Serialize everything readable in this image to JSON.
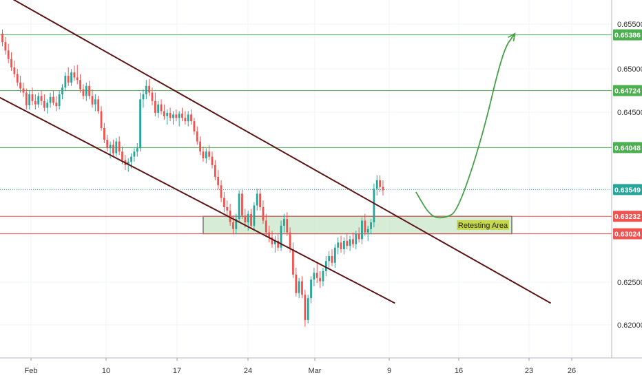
{
  "chart_data": {
    "type": "candlestick",
    "title": "",
    "xlabel": "",
    "ylabel": "",
    "ylim": [
      0.6155,
      0.658
    ],
    "y_ticks": [
      "0.65500",
      "0.65000",
      "0.64500",
      "0.62500",
      "0.62000"
    ],
    "x_ticks": [
      "Feb",
      "10",
      "17",
      "24",
      "Mar",
      "9",
      "16",
      "23",
      "26"
    ],
    "grid": true,
    "price_levels": [
      {
        "label": "0.65386",
        "value": 0.65386,
        "color": "#4caf50",
        "style": "solid"
      },
      {
        "label": "0.64724",
        "value": 0.64724,
        "color": "#4caf50",
        "style": "solid"
      },
      {
        "label": "0.64048",
        "value": 0.64048,
        "color": "#4caf50",
        "style": "solid"
      },
      {
        "label": "0.63549",
        "value": 0.63549,
        "color": "#26a69a",
        "style": "dotted"
      },
      {
        "label": "0.63232",
        "value": 0.63232,
        "color": "#ef5350",
        "style": "solid"
      },
      {
        "label": "0.63024",
        "value": 0.63024,
        "color": "#ef5350",
        "style": "solid"
      }
    ],
    "candles": [
      [
        0.654,
        0.6545,
        0.6525,
        0.653
      ],
      [
        0.653,
        0.6536,
        0.6515,
        0.652
      ],
      [
        0.652,
        0.6528,
        0.6505,
        0.651
      ],
      [
        0.651,
        0.6518,
        0.6496,
        0.65
      ],
      [
        0.65,
        0.6508,
        0.6488,
        0.6492
      ],
      [
        0.6492,
        0.6498,
        0.6478,
        0.6482
      ],
      [
        0.6482,
        0.649,
        0.647,
        0.6475
      ],
      [
        0.6475,
        0.6482,
        0.6465,
        0.647
      ],
      [
        0.647,
        0.6475,
        0.645,
        0.6455
      ],
      [
        0.6455,
        0.6472,
        0.645,
        0.6468
      ],
      [
        0.6468,
        0.6476,
        0.6455,
        0.646
      ],
      [
        0.646,
        0.6468,
        0.645,
        0.6456
      ],
      [
        0.6456,
        0.647,
        0.6452,
        0.6466
      ],
      [
        0.6466,
        0.6472,
        0.6455,
        0.646
      ],
      [
        0.646,
        0.6468,
        0.6448,
        0.6452
      ],
      [
        0.6452,
        0.6462,
        0.6445,
        0.6458
      ],
      [
        0.6458,
        0.647,
        0.6452,
        0.6465
      ],
      [
        0.6465,
        0.6472,
        0.6455,
        0.6458
      ],
      [
        0.6458,
        0.6466,
        0.6448,
        0.6454
      ],
      [
        0.6454,
        0.6472,
        0.645,
        0.6468
      ],
      [
        0.6468,
        0.648,
        0.6462,
        0.6476
      ],
      [
        0.6476,
        0.6494,
        0.6472,
        0.649
      ],
      [
        0.649,
        0.65,
        0.6478,
        0.6482
      ],
      [
        0.6482,
        0.6498,
        0.6478,
        0.6494
      ],
      [
        0.6494,
        0.6502,
        0.6484,
        0.6488
      ],
      [
        0.6488,
        0.6503,
        0.648,
        0.6485
      ],
      [
        0.6485,
        0.6492,
        0.647,
        0.6474
      ],
      [
        0.6474,
        0.648,
        0.6462,
        0.6466
      ],
      [
        0.6466,
        0.6482,
        0.646,
        0.6478
      ],
      [
        0.6478,
        0.6484,
        0.6462,
        0.6466
      ],
      [
        0.6466,
        0.6474,
        0.6452,
        0.6456
      ],
      [
        0.6456,
        0.6468,
        0.6448,
        0.6462
      ],
      [
        0.6462,
        0.6466,
        0.6445,
        0.6448
      ],
      [
        0.6448,
        0.6454,
        0.6425,
        0.6428
      ],
      [
        0.6428,
        0.6434,
        0.641,
        0.6414
      ],
      [
        0.6414,
        0.642,
        0.64,
        0.6404
      ],
      [
        0.6404,
        0.6412,
        0.6392,
        0.6408
      ],
      [
        0.6408,
        0.6414,
        0.6395,
        0.6398
      ],
      [
        0.6398,
        0.6416,
        0.6394,
        0.6412
      ],
      [
        0.6412,
        0.6418,
        0.6396,
        0.64
      ],
      [
        0.64,
        0.6406,
        0.6385,
        0.639
      ],
      [
        0.639,
        0.6396,
        0.6378,
        0.6384
      ],
      [
        0.6384,
        0.6392,
        0.6376,
        0.6388
      ],
      [
        0.6388,
        0.6398,
        0.638,
        0.6394
      ],
      [
        0.6394,
        0.6404,
        0.6388,
        0.64
      ],
      [
        0.64,
        0.641,
        0.6394,
        0.6404
      ],
      [
        0.6404,
        0.647,
        0.64,
        0.6462
      ],
      [
        0.6462,
        0.6474,
        0.6452,
        0.6468
      ],
      [
        0.6468,
        0.6485,
        0.6462,
        0.6478
      ],
      [
        0.6478,
        0.6486,
        0.6466,
        0.647
      ],
      [
        0.647,
        0.6476,
        0.6455,
        0.646
      ],
      [
        0.646,
        0.647,
        0.6442,
        0.6446
      ],
      [
        0.6446,
        0.646,
        0.644,
        0.6456
      ],
      [
        0.6456,
        0.6462,
        0.6444,
        0.6448
      ],
      [
        0.6448,
        0.6456,
        0.6438,
        0.6442
      ],
      [
        0.6442,
        0.645,
        0.6432,
        0.6446
      ],
      [
        0.6446,
        0.6452,
        0.6436,
        0.644
      ],
      [
        0.644,
        0.6448,
        0.6432,
        0.6444
      ],
      [
        0.6444,
        0.645,
        0.6436,
        0.644
      ],
      [
        0.644,
        0.6448,
        0.643,
        0.6445
      ],
      [
        0.6445,
        0.6452,
        0.6436,
        0.644
      ],
      [
        0.644,
        0.6448,
        0.6432,
        0.6436
      ],
      [
        0.6436,
        0.6448,
        0.643,
        0.6444
      ],
      [
        0.6444,
        0.645,
        0.6432,
        0.6436
      ],
      [
        0.6436,
        0.644,
        0.642,
        0.6424
      ],
      [
        0.6424,
        0.643,
        0.6408,
        0.6412
      ],
      [
        0.6412,
        0.6418,
        0.6396,
        0.64
      ],
      [
        0.64,
        0.6406,
        0.6388,
        0.6392
      ],
      [
        0.6392,
        0.6404,
        0.6386,
        0.64
      ],
      [
        0.64,
        0.6408,
        0.639,
        0.6394
      ],
      [
        0.6394,
        0.64,
        0.638,
        0.6384
      ],
      [
        0.6384,
        0.639,
        0.6366,
        0.637
      ],
      [
        0.637,
        0.6378,
        0.6355,
        0.636
      ],
      [
        0.636,
        0.6366,
        0.634,
        0.6345
      ],
      [
        0.6345,
        0.6352,
        0.6328,
        0.6334
      ],
      [
        0.6334,
        0.6342,
        0.6322,
        0.633
      ],
      [
        0.633,
        0.6338,
        0.6312,
        0.6316
      ],
      [
        0.6316,
        0.6324,
        0.6302,
        0.6308
      ],
      [
        0.6308,
        0.6326,
        0.6302,
        0.632
      ],
      [
        0.632,
        0.6354,
        0.6316,
        0.635
      ],
      [
        0.635,
        0.6356,
        0.632,
        0.6324
      ],
      [
        0.6324,
        0.6332,
        0.631,
        0.6316
      ],
      [
        0.6316,
        0.633,
        0.6306,
        0.6326
      ],
      [
        0.6326,
        0.6332,
        0.6308,
        0.6312
      ],
      [
        0.6312,
        0.634,
        0.6306,
        0.6336
      ],
      [
        0.6336,
        0.6356,
        0.633,
        0.635
      ],
      [
        0.635,
        0.6356,
        0.633,
        0.6334
      ],
      [
        0.6334,
        0.6342,
        0.6314,
        0.6318
      ],
      [
        0.6318,
        0.6326,
        0.63,
        0.6304
      ],
      [
        0.6304,
        0.6312,
        0.6292,
        0.6298
      ],
      [
        0.6298,
        0.6306,
        0.6286,
        0.629
      ],
      [
        0.629,
        0.63,
        0.628,
        0.6294
      ],
      [
        0.6294,
        0.6302,
        0.6282,
        0.6286
      ],
      [
        0.6286,
        0.6318,
        0.6282,
        0.6312
      ],
      [
        0.6312,
        0.6326,
        0.6304,
        0.632
      ],
      [
        0.632,
        0.6328,
        0.63,
        0.6304
      ],
      [
        0.6304,
        0.631,
        0.628,
        0.6284
      ],
      [
        0.6284,
        0.6292,
        0.625,
        0.6254
      ],
      [
        0.6254,
        0.6262,
        0.6228,
        0.6232
      ],
      [
        0.6232,
        0.625,
        0.6226,
        0.6246
      ],
      [
        0.6246,
        0.6252,
        0.6226,
        0.623
      ],
      [
        0.623,
        0.6236,
        0.6192,
        0.62
      ],
      [
        0.62,
        0.623,
        0.6196,
        0.6226
      ],
      [
        0.6226,
        0.6252,
        0.622,
        0.6248
      ],
      [
        0.6248,
        0.6262,
        0.624,
        0.6256
      ],
      [
        0.6256,
        0.6268,
        0.6244,
        0.625
      ],
      [
        0.625,
        0.6258,
        0.6238,
        0.6246
      ],
      [
        0.6246,
        0.6262,
        0.624,
        0.6258
      ],
      [
        0.6258,
        0.6276,
        0.6252,
        0.627
      ],
      [
        0.627,
        0.6282,
        0.6262,
        0.6276
      ],
      [
        0.6276,
        0.6284,
        0.6264,
        0.6268
      ],
      [
        0.6268,
        0.629,
        0.6262,
        0.6286
      ],
      [
        0.6286,
        0.6298,
        0.6278,
        0.6292
      ],
      [
        0.6292,
        0.63,
        0.628,
        0.6284
      ],
      [
        0.6284,
        0.6298,
        0.6278,
        0.6294
      ],
      [
        0.6294,
        0.6302,
        0.6284,
        0.6288
      ],
      [
        0.6288,
        0.63,
        0.6282,
        0.6296
      ],
      [
        0.6296,
        0.6304,
        0.6286,
        0.629
      ],
      [
        0.629,
        0.6306,
        0.6284,
        0.6302
      ],
      [
        0.6302,
        0.631,
        0.6292,
        0.6296
      ],
      [
        0.6296,
        0.6322,
        0.629,
        0.6318
      ],
      [
        0.6318,
        0.6326,
        0.63,
        0.6304
      ],
      [
        0.6304,
        0.6312,
        0.6294,
        0.6308
      ],
      [
        0.6308,
        0.632,
        0.6302,
        0.6316
      ],
      [
        0.6316,
        0.6362,
        0.631,
        0.6356
      ],
      [
        0.6356,
        0.6372,
        0.6348,
        0.6366
      ],
      [
        0.6366,
        0.6372,
        0.6352,
        0.6358
      ],
      [
        0.6358,
        0.6366,
        0.6348,
        0.6354
      ]
    ],
    "resistance_channel": [
      [
        -6,
        0.66
      ],
      [
        183,
        0.622
      ]
    ],
    "support_channel": [
      [
        -4,
        0.647
      ],
      [
        131,
        0.622
      ]
    ],
    "retest_zone": {
      "label": "Retesting Area",
      "x": [
        67,
        170
      ],
      "low": 0.63024,
      "high": 0.63232,
      "fill": "#c8e6c9"
    },
    "projection_path": [
      [
        138,
        0.6352
      ],
      [
        143,
        0.6322
      ],
      [
        148,
        0.6321
      ],
      [
        152,
        0.633
      ],
      [
        160,
        0.6415
      ],
      [
        167,
        0.652
      ],
      [
        171,
        0.654
      ]
    ],
    "projection_color": "#43a047",
    "colors": {
      "up": "#26a69a",
      "down": "#ef5350",
      "channel": "#5d1414",
      "grid": "#f0f3fa",
      "axis": "#333333"
    }
  }
}
